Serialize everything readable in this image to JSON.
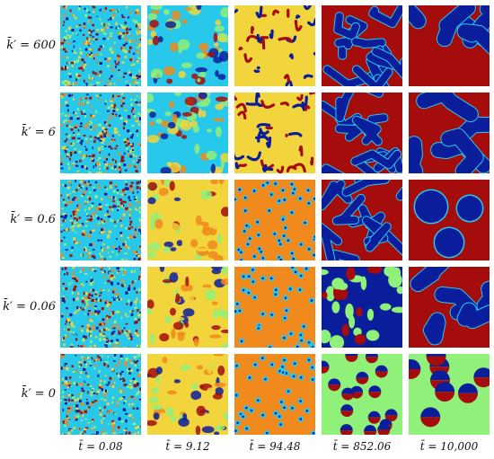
{
  "rows": [
    {
      "label": "k̄′ = 600"
    },
    {
      "label": "k̄′ = 6"
    },
    {
      "label": "k̄′ = 0.6"
    },
    {
      "label": "k̄′ = 0.06"
    },
    {
      "label": "k̄′ = 0"
    }
  ],
  "columns": [
    {
      "label": "t̄ = 0.08"
    },
    {
      "label": "t̄ = 9.12"
    },
    {
      "label": "t̄ = 94.48"
    },
    {
      "label": "t̄ = 852.06"
    },
    {
      "label": "t̄ = 10,000"
    }
  ],
  "panels": [
    [
      "random-noise",
      "blobs-cyan",
      "worms",
      "labyrinth-fine",
      "labyrinth-coarse"
    ],
    [
      "random-noise",
      "blobs-cyan",
      "worms-dense",
      "labyrinth-fine",
      "labyrinth-coarse"
    ],
    [
      "random-noise",
      "blobs-yellow",
      "orange-spots",
      "labyrinth-fine",
      "labyrinth-holes"
    ],
    [
      "random-noise",
      "blobs-yellow",
      "orange-dots",
      "fragmented",
      "labyrinth-coarse"
    ],
    [
      "random-noise",
      "blobs-yellow",
      "orange-dots",
      "green-droplets",
      "green-droplets-large"
    ]
  ],
  "colors": {
    "blue": "#0a1e9c",
    "red": "#a50d0d",
    "cyan": "#28c8ea",
    "green": "#8ff07a",
    "yellow": "#f2d53c",
    "orange": "#f08a1c"
  }
}
